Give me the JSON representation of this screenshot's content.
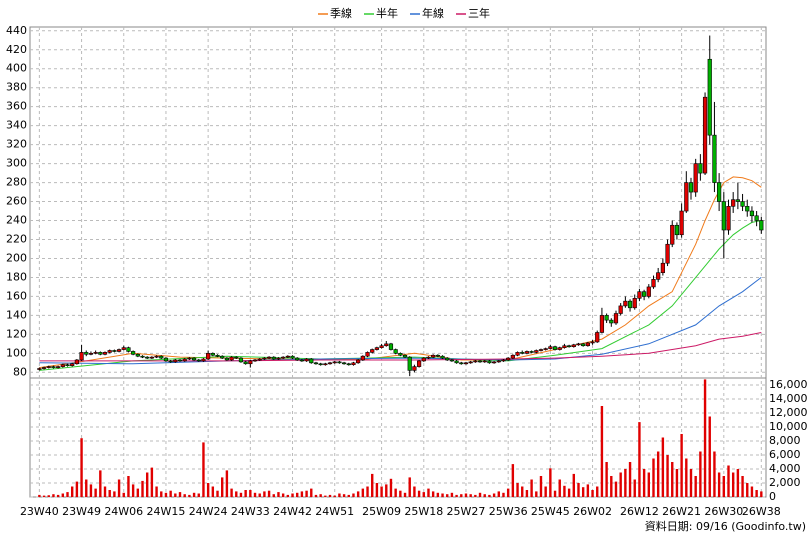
{
  "chart_data": {
    "type": "candlestick",
    "series": [
      {
        "name": "季線",
        "color": "#f07a1a",
        "x": [
          0,
          10,
          20,
          30,
          40,
          50,
          60,
          70,
          80,
          90,
          100,
          110,
          120,
          125,
          130,
          135,
          137,
          140,
          142,
          144,
          146,
          148,
          150,
          152,
          154
        ],
        "values": [
          85,
          92,
          100,
          96,
          95,
          94,
          93,
          94,
          100,
          93,
          93,
          104,
          115,
          130,
          150,
          165,
          185,
          215,
          240,
          262,
          280,
          286,
          285,
          282,
          275
        ]
      },
      {
        "name": "半年",
        "color": "#33cc33",
        "x": [
          0,
          20,
          40,
          60,
          80,
          100,
          110,
          120,
          130,
          135,
          140,
          145,
          148,
          150,
          152,
          154
        ],
        "values": [
          82,
          92,
          97,
          94,
          96,
          92,
          98,
          105,
          130,
          150,
          180,
          210,
          225,
          232,
          238,
          240
        ]
      },
      {
        "name": "年線",
        "color": "#2f6fd0",
        "x": [
          0,
          20,
          40,
          60,
          80,
          100,
          110,
          120,
          130,
          140,
          145,
          150,
          154
        ],
        "values": [
          90,
          89,
          92,
          94,
          95,
          93,
          94,
          99,
          110,
          130,
          150,
          165,
          180
        ]
      },
      {
        "name": "三年",
        "color": "#cc1a66",
        "x": [
          0,
          20,
          40,
          60,
          80,
          100,
          110,
          120,
          130,
          140,
          145,
          150,
          154
        ],
        "values": [
          92,
          92,
          92,
          93,
          93,
          94,
          95,
          97,
          100,
          108,
          115,
          118,
          122
        ]
      }
    ],
    "ohlc": [
      [
        83,
        85,
        82,
        84
      ],
      [
        84,
        86,
        83,
        85
      ],
      [
        85,
        87,
        84,
        86
      ],
      [
        86,
        87,
        84,
        85
      ],
      [
        85,
        87,
        84,
        86
      ],
      [
        86,
        89,
        85,
        88
      ],
      [
        88,
        89,
        86,
        87
      ],
      [
        87,
        90,
        86,
        89
      ],
      [
        89,
        94,
        88,
        93
      ],
      [
        93,
        109,
        92,
        101
      ],
      [
        101,
        103,
        97,
        99
      ],
      [
        99,
        102,
        98,
        100
      ],
      [
        100,
        103,
        99,
        101
      ],
      [
        101,
        102,
        98,
        99
      ],
      [
        99,
        102,
        98,
        101
      ],
      [
        101,
        104,
        100,
        103
      ],
      [
        103,
        104,
        101,
        102
      ],
      [
        102,
        105,
        101,
        104
      ],
      [
        104,
        108,
        103,
        106
      ],
      [
        106,
        107,
        101,
        102
      ],
      [
        102,
        103,
        98,
        99
      ],
      [
        99,
        100,
        96,
        97
      ],
      [
        97,
        98,
        95,
        96
      ],
      [
        96,
        97,
        94,
        95
      ],
      [
        95,
        97,
        94,
        96
      ],
      [
        96,
        98,
        95,
        97
      ],
      [
        97,
        98,
        94,
        95
      ],
      [
        95,
        96,
        91,
        92
      ],
      [
        92,
        93,
        90,
        91
      ],
      [
        91,
        94,
        90,
        93
      ],
      [
        93,
        94,
        91,
        92
      ],
      [
        92,
        95,
        91,
        94
      ],
      [
        94,
        96,
        93,
        95
      ],
      [
        95,
        96,
        92,
        93
      ],
      [
        93,
        94,
        91,
        92
      ],
      [
        92,
        95,
        91,
        94
      ],
      [
        94,
        103,
        93,
        100
      ],
      [
        100,
        101,
        97,
        98
      ],
      [
        98,
        99,
        96,
        97
      ],
      [
        97,
        98,
        94,
        95
      ],
      [
        95,
        96,
        92,
        93
      ],
      [
        93,
        97,
        92,
        96
      ],
      [
        96,
        97,
        94,
        95
      ],
      [
        95,
        96,
        90,
        91
      ],
      [
        91,
        92,
        88,
        89
      ],
      [
        89,
        93,
        85,
        92
      ],
      [
        92,
        94,
        91,
        93
      ],
      [
        93,
        95,
        92,
        94
      ],
      [
        94,
        96,
        93,
        95
      ],
      [
        95,
        97,
        94,
        96
      ],
      [
        96,
        97,
        93,
        94
      ],
      [
        94,
        96,
        93,
        95
      ],
      [
        95,
        97,
        94,
        96
      ],
      [
        96,
        98,
        95,
        97
      ],
      [
        97,
        98,
        94,
        95
      ],
      [
        95,
        96,
        92,
        93
      ],
      [
        93,
        94,
        91,
        92
      ],
      [
        92,
        95,
        91,
        94
      ],
      [
        94,
        95,
        89,
        90
      ],
      [
        90,
        91,
        88,
        89
      ],
      [
        89,
        90,
        87,
        88
      ],
      [
        88,
        90,
        87,
        89
      ],
      [
        89,
        91,
        88,
        90
      ],
      [
        90,
        92,
        89,
        91
      ],
      [
        91,
        92,
        89,
        90
      ],
      [
        90,
        91,
        88,
        89
      ],
      [
        89,
        90,
        87,
        88
      ],
      [
        88,
        91,
        87,
        90
      ],
      [
        90,
        94,
        89,
        93
      ],
      [
        93,
        98,
        92,
        97
      ],
      [
        97,
        102,
        96,
        101
      ],
      [
        101,
        105,
        100,
        104
      ],
      [
        104,
        107,
        103,
        106
      ],
      [
        106,
        110,
        105,
        108
      ],
      [
        108,
        113,
        107,
        110
      ],
      [
        110,
        111,
        103,
        104
      ],
      [
        104,
        105,
        99,
        100
      ],
      [
        100,
        101,
        97,
        98
      ],
      [
        98,
        99,
        95,
        96
      ],
      [
        96,
        97,
        76,
        82
      ],
      [
        82,
        88,
        80,
        86
      ],
      [
        86,
        93,
        85,
        92
      ],
      [
        92,
        96,
        91,
        95
      ],
      [
        95,
        97,
        94,
        96
      ],
      [
        96,
        99,
        95,
        98
      ],
      [
        98,
        99,
        96,
        97
      ],
      [
        97,
        98,
        94,
        95
      ],
      [
        95,
        96,
        92,
        93
      ],
      [
        93,
        94,
        91,
        92
      ],
      [
        92,
        93,
        89,
        90
      ],
      [
        90,
        91,
        88,
        89
      ],
      [
        89,
        91,
        88,
        90
      ],
      [
        90,
        92,
        89,
        91
      ],
      [
        91,
        93,
        90,
        92
      ],
      [
        92,
        93,
        90,
        91
      ],
      [
        91,
        93,
        90,
        92
      ],
      [
        92,
        93,
        89,
        90
      ],
      [
        90,
        92,
        89,
        91
      ],
      [
        91,
        93,
        90,
        92
      ],
      [
        92,
        94,
        91,
        93
      ],
      [
        93,
        96,
        92,
        95
      ],
      [
        95,
        99,
        94,
        98
      ],
      [
        98,
        102,
        97,
        101
      ],
      [
        101,
        103,
        99,
        100
      ],
      [
        100,
        103,
        99,
        102
      ],
      [
        102,
        103,
        100,
        101
      ],
      [
        101,
        104,
        100,
        103
      ],
      [
        103,
        105,
        102,
        104
      ],
      [
        104,
        106,
        103,
        105
      ],
      [
        105,
        109,
        104,
        107
      ],
      [
        107,
        108,
        103,
        104
      ],
      [
        104,
        107,
        103,
        106
      ],
      [
        106,
        110,
        105,
        108
      ],
      [
        108,
        109,
        106,
        107
      ],
      [
        107,
        110,
        106,
        109
      ],
      [
        109,
        111,
        108,
        110
      ],
      [
        110,
        111,
        107,
        108
      ],
      [
        108,
        112,
        107,
        111
      ],
      [
        111,
        114,
        109,
        112
      ],
      [
        112,
        124,
        111,
        122
      ],
      [
        122,
        148,
        121,
        140
      ],
      [
        140,
        142,
        132,
        135
      ],
      [
        135,
        137,
        128,
        132
      ],
      [
        132,
        145,
        130,
        142
      ],
      [
        142,
        153,
        140,
        150
      ],
      [
        150,
        160,
        148,
        155
      ],
      [
        155,
        157,
        144,
        148
      ],
      [
        148,
        162,
        146,
        158
      ],
      [
        158,
        168,
        155,
        165
      ],
      [
        165,
        167,
        156,
        160
      ],
      [
        160,
        173,
        158,
        170
      ],
      [
        170,
        182,
        168,
        178
      ],
      [
        178,
        190,
        175,
        185
      ],
      [
        185,
        200,
        182,
        195
      ],
      [
        195,
        220,
        192,
        215
      ],
      [
        215,
        240,
        212,
        235
      ],
      [
        235,
        238,
        220,
        225
      ],
      [
        225,
        258,
        222,
        250
      ],
      [
        250,
        292,
        248,
        280
      ],
      [
        280,
        285,
        262,
        270
      ],
      [
        270,
        305,
        265,
        300
      ],
      [
        300,
        310,
        282,
        290
      ],
      [
        290,
        375,
        288,
        370
      ],
      [
        410,
        435,
        320,
        330
      ],
      [
        330,
        365,
        270,
        280
      ],
      [
        280,
        290,
        250,
        260
      ],
      [
        260,
        270,
        200,
        230
      ],
      [
        230,
        262,
        225,
        255
      ],
      [
        255,
        270,
        248,
        262
      ],
      [
        262,
        280,
        252,
        260
      ],
      [
        260,
        268,
        250,
        255
      ],
      [
        255,
        262,
        244,
        250
      ],
      [
        250,
        255,
        238,
        245
      ],
      [
        245,
        250,
        234,
        240
      ],
      [
        240,
        244,
        226,
        230
      ]
    ],
    "up_color": "#e00000",
    "down_color": "#00b000",
    "volume": {
      "color": "#e00000",
      "axis": "y2",
      "values": [
        300,
        200,
        250,
        400,
        300,
        500,
        700,
        1500,
        2200,
        8400,
        2500,
        1800,
        1200,
        3800,
        1500,
        1000,
        800,
        2500,
        600,
        3000,
        1800,
        1200,
        2300,
        3500,
        4200,
        1500,
        800,
        600,
        900,
        500,
        700,
        400,
        300,
        600,
        500,
        7800,
        2000,
        1500,
        900,
        2800,
        3800,
        1200,
        800,
        600,
        1000,
        1000,
        600,
        500,
        800,
        900,
        400,
        700,
        500,
        300,
        500,
        600,
        800,
        900,
        1200,
        300,
        400,
        200,
        300,
        200,
        500,
        400,
        300,
        500,
        800,
        1200,
        1500,
        3300,
        2000,
        1500,
        1800,
        2600,
        1200,
        900,
        600,
        2800,
        1500,
        900,
        700,
        1200,
        800,
        600,
        500,
        400,
        600,
        300,
        400,
        500,
        400,
        300,
        600,
        400,
        300,
        500,
        800,
        600,
        1200,
        4700,
        2000,
        1500,
        1000,
        2500,
        800,
        3000,
        1500,
        4100,
        900,
        2500,
        1600,
        1200,
        3300,
        2000,
        1400,
        1800,
        1000,
        1500,
        13000,
        5000,
        3000,
        2200,
        3500,
        4000,
        5000,
        2500,
        10700,
        4000,
        3500,
        5500,
        6500,
        8500,
        6000,
        5000,
        4000,
        9000,
        5500,
        4000,
        3000,
        6500,
        16800,
        11500,
        6500,
        3500,
        3000,
        4500,
        3500,
        4000,
        3000,
        2000,
        1500,
        1000,
        800
      ]
    },
    "xlim": [
      -2,
      155
    ],
    "xticks": [
      {
        "value": 0,
        "label": "23W40"
      },
      {
        "value": 9,
        "label": "23W49"
      },
      {
        "value": 18,
        "label": "24W06"
      },
      {
        "value": 27,
        "label": "24W15"
      },
      {
        "value": 36,
        "label": "24W24"
      },
      {
        "value": 45,
        "label": "24W33"
      },
      {
        "value": 54,
        "label": "24W42"
      },
      {
        "value": 63,
        "label": "24W51"
      },
      {
        "value": 73,
        "label": "25W09"
      },
      {
        "value": 82,
        "label": "25W18"
      },
      {
        "value": 91,
        "label": "25W27"
      },
      {
        "value": 100,
        "label": "25W36"
      },
      {
        "value": 109,
        "label": "25W45"
      },
      {
        "value": 118,
        "label": "26W02"
      },
      {
        "value": 128,
        "label": "26W12"
      },
      {
        "value": 137,
        "label": "26W21"
      },
      {
        "value": 146,
        "label": "26W30"
      },
      {
        "value": 154,
        "label": "26W38"
      }
    ],
    "ylim": [
      74,
      444
    ],
    "yticks": [
      80,
      100,
      120,
      140,
      160,
      180,
      200,
      220,
      240,
      260,
      280,
      300,
      320,
      340,
      360,
      380,
      400,
      420,
      440
    ],
    "y2lim": [
      0,
      17000
    ],
    "y2ticks": [
      0,
      {
        "value": 2000,
        "label": "2,000"
      },
      {
        "value": 4000,
        "label": "4,000"
      },
      {
        "value": 6000,
        "label": "6,000"
      },
      {
        "value": 8000,
        "label": "8,000"
      },
      {
        "value": 10000,
        "label": "10,000"
      },
      {
        "value": 12000,
        "label": "12,000"
      },
      {
        "value": 14000,
        "label": "14,000"
      },
      {
        "value": 16000,
        "label": "16,000"
      }
    ],
    "grid": true,
    "legend": "top",
    "annotation": "資料日期: 09/16 (Goodinfo.tw)"
  }
}
